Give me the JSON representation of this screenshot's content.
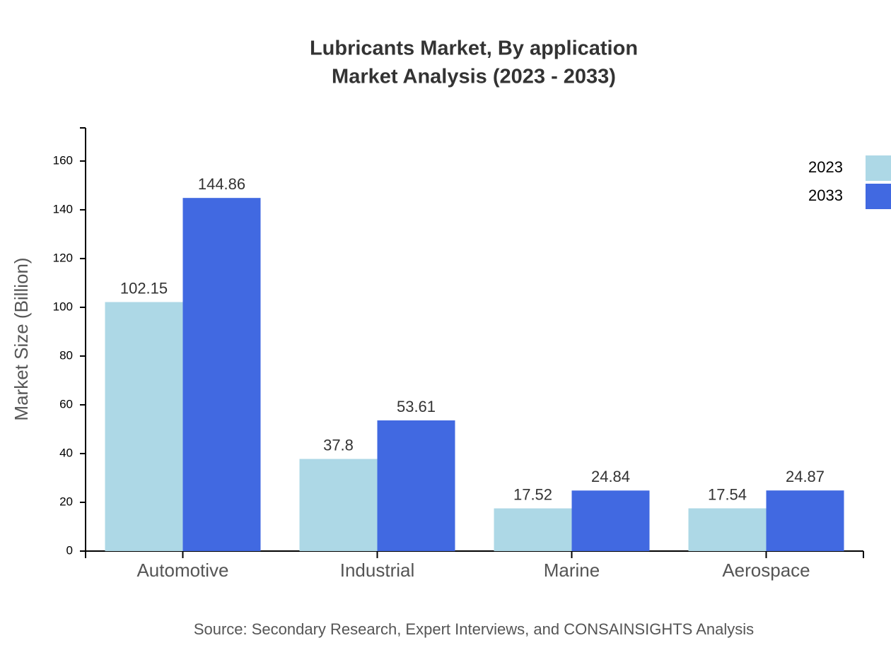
{
  "chart_data": {
    "type": "bar",
    "title": "Lubricants Market, By application",
    "subtitle": "Market Analysis (2023 - 2033)",
    "y_label": "Market Size (Billion)",
    "source": "Source: Secondary Research, Expert Interviews, and CONSAINSIGHTS Analysis",
    "categories": [
      "Automotive",
      "Industrial",
      "Marine",
      "Aerospace"
    ],
    "series": [
      {
        "name": "2023",
        "color": "#add8e6",
        "values": [
          102.15,
          37.8,
          17.52,
          17.54
        ]
      },
      {
        "name": "2033",
        "color": "#4169e1",
        "values": [
          144.86,
          53.61,
          24.84,
          24.87
        ]
      }
    ],
    "ylim": [
      0,
      173.6
    ],
    "yticks": [
      0,
      20,
      40,
      60,
      80,
      100,
      120,
      140,
      160
    ],
    "legend": "top-right"
  }
}
